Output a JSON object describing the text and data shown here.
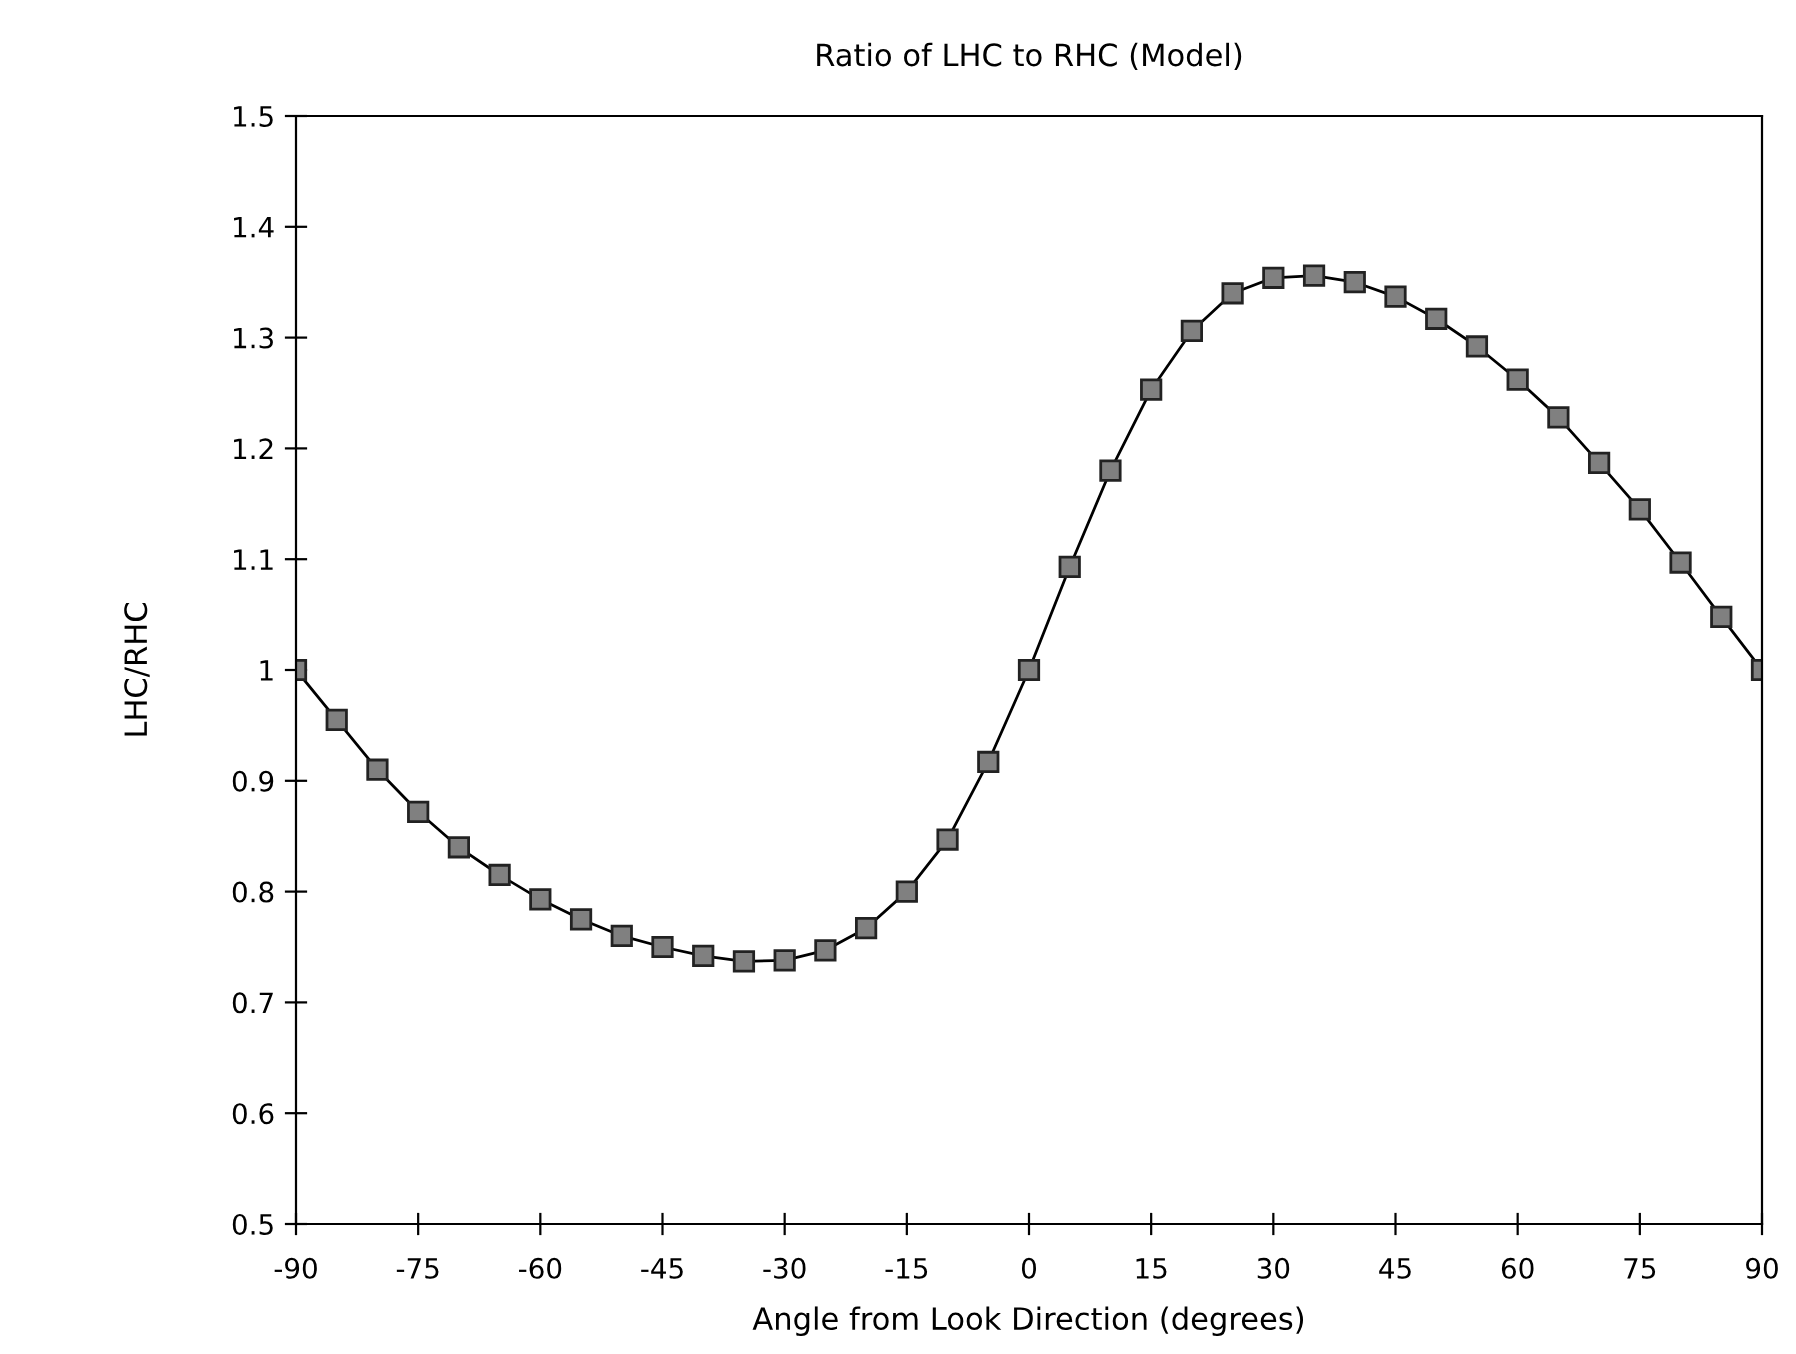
{
  "chart_data": {
    "type": "line",
    "title": "Ratio of LHC to RHC (Model)",
    "xlabel": "Angle from Look Direction (degrees)",
    "ylabel": "LHC/RHC",
    "x": [
      -90,
      -85,
      -80,
      -75,
      -70,
      -65,
      -60,
      -55,
      -50,
      -45,
      -40,
      -35,
      -30,
      -25,
      -20,
      -15,
      -10,
      -5,
      0,
      5,
      10,
      15,
      20,
      25,
      30,
      35,
      40,
      45,
      50,
      55,
      60,
      65,
      70,
      75,
      80,
      85,
      90
    ],
    "series": [
      {
        "color": "#808080",
        "values": [
          1.0,
          0.955,
          0.91,
          0.872,
          0.84,
          0.815,
          0.793,
          0.775,
          0.76,
          0.75,
          0.742,
          0.737,
          0.738,
          0.747,
          0.767,
          0.8,
          0.847,
          0.917,
          1.0,
          1.093,
          1.18,
          1.253,
          1.306,
          1.34,
          1.354,
          1.356,
          1.35,
          1.337,
          1.317,
          1.292,
          1.262,
          1.228,
          1.187,
          1.145,
          1.097,
          1.048,
          1.0
        ]
      }
    ],
    "xlim": [
      -90,
      90
    ],
    "xticks": [
      -90,
      -75,
      -60,
      -45,
      -30,
      -15,
      0,
      15,
      30,
      45,
      60,
      75,
      90
    ],
    "ylim": [
      0.5,
      1.5
    ],
    "yticks": [
      0.5,
      0.6,
      0.7,
      0.8,
      0.9,
      1,
      1.1,
      1.2,
      1.3,
      1.4,
      1.5
    ],
    "marker": "square",
    "line_style": "solid",
    "grid": false,
    "legend": false
  }
}
